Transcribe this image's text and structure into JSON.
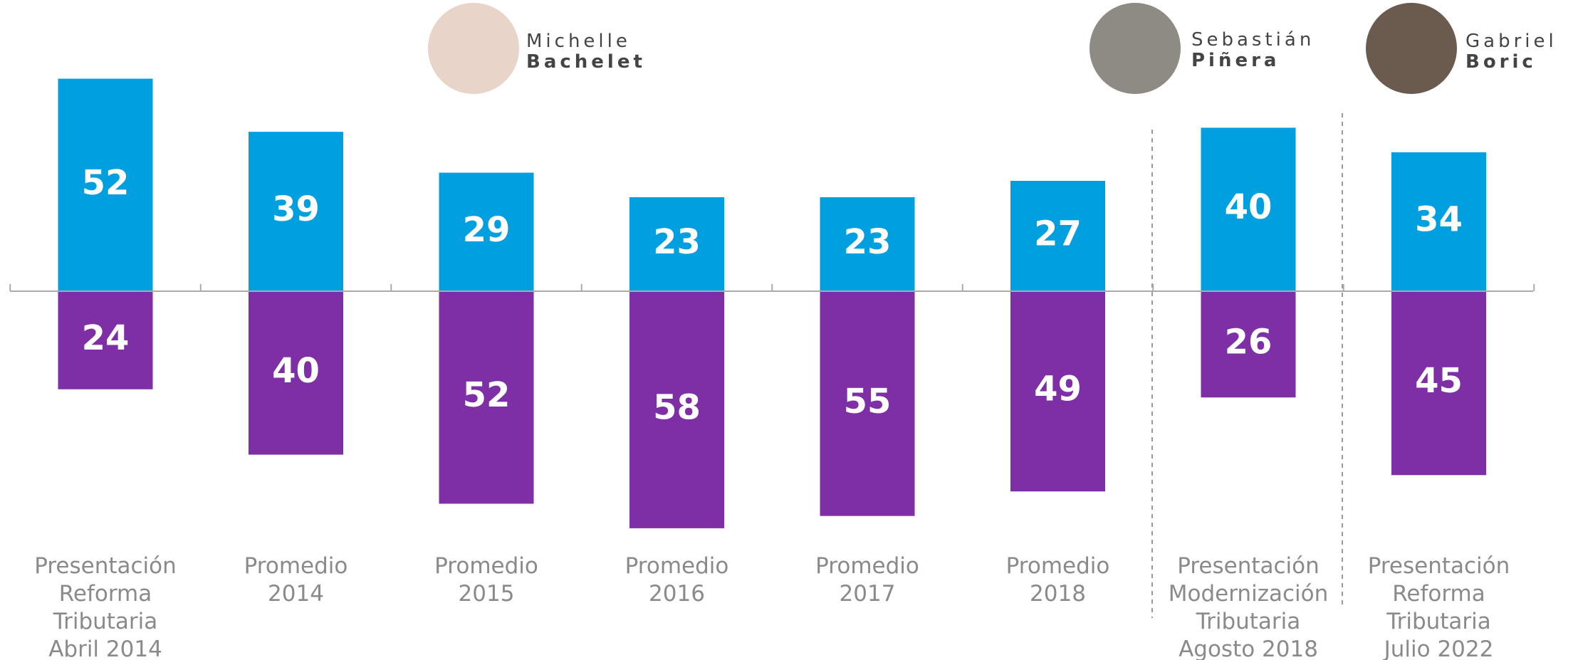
{
  "chart_data": {
    "type": "diverging-bar",
    "categories": [
      [
        "Presentación",
        "Reforma",
        "Tributaria",
        "Abril 2014"
      ],
      [
        "Promedio",
        "2014"
      ],
      [
        "Promedio",
        "2015"
      ],
      [
        "Promedio",
        "2016"
      ],
      [
        "Promedio",
        "2017"
      ],
      [
        "Promedio",
        "2018"
      ],
      [
        "Presentación",
        "Modernización",
        "Tributaria",
        "Agosto 2018"
      ],
      [
        "Presentación",
        "Reforma",
        "Tributaria",
        "Julio 2022"
      ]
    ],
    "series": [
      {
        "color": "#009fe0",
        "values": [
          52,
          39,
          29,
          23,
          23,
          27,
          40,
          34
        ]
      },
      {
        "color": "#7f2fa6",
        "values": [
          24,
          40,
          52,
          58,
          55,
          49,
          26,
          45
        ]
      }
    ],
    "annotations": [
      {
        "first": "Michelle",
        "last": "Bachelet"
      },
      {
        "first": "Sebastián",
        "last": "Piñera"
      },
      {
        "first": "Gabriel",
        "last": "Boric"
      }
    ]
  }
}
